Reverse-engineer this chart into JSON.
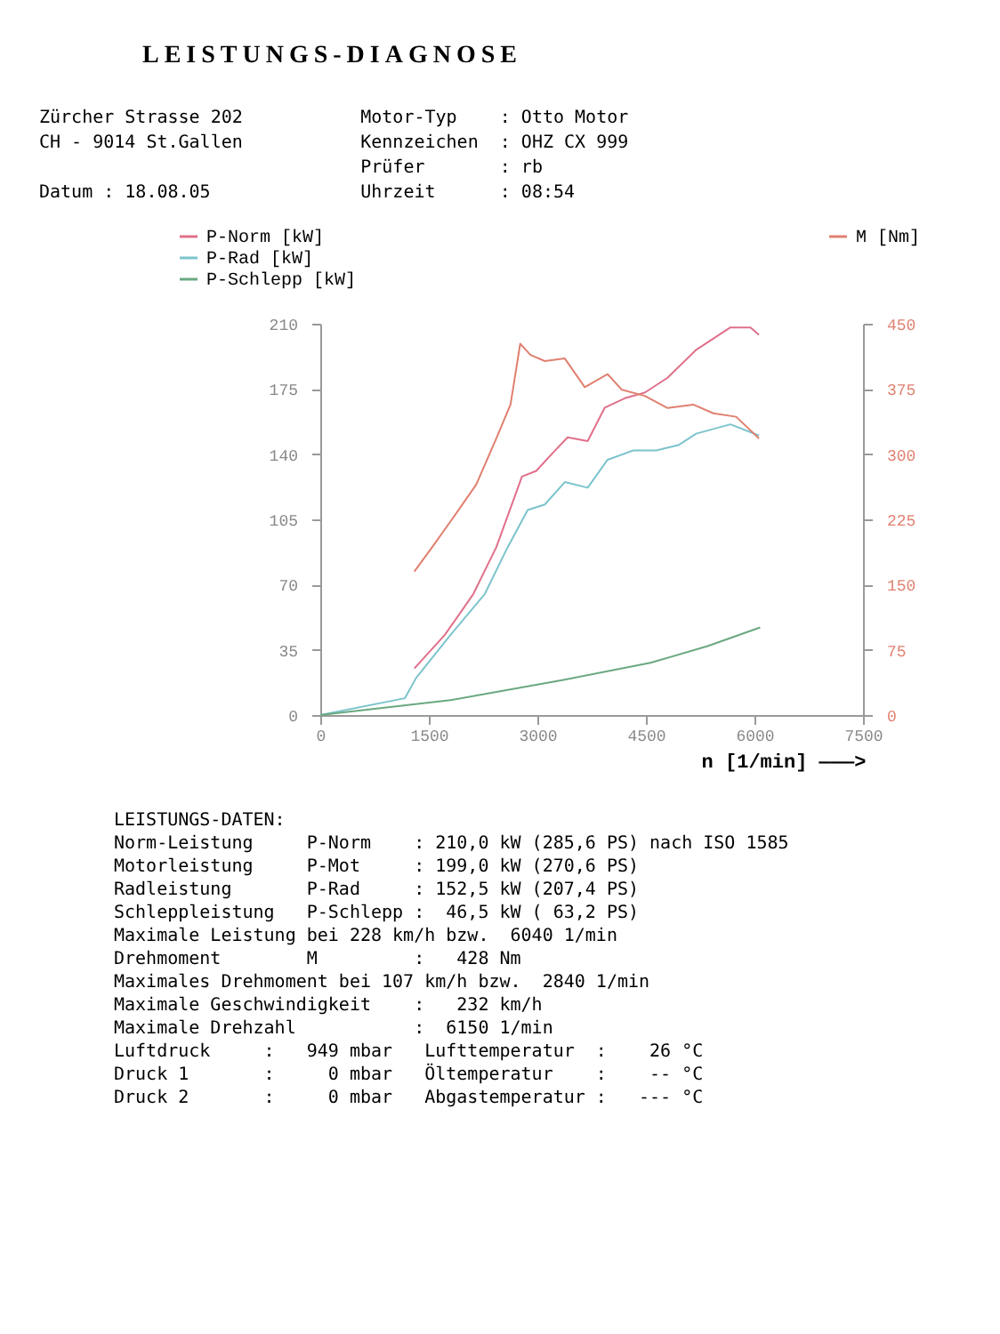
{
  "chart_data": {
    "type": "line",
    "title": "LEISTUNGS-DIAGNOSE",
    "subtitle": [
      "Zürcher Strasse 202           Motor-Typ    : Otto Motor",
      "CH - 9014 St.Gallen           Kennzeichen  : OHZ CX 999",
      "                              Prüfer       : rb",
      "Datum : 18.08.05              Uhrzeit      : 08:54"
    ],
    "xlabel": "n [1/min] ———>",
    "xlim": [
      0,
      7500
    ],
    "xticks": [
      0,
      1500,
      3000,
      4500,
      6000,
      7500
    ],
    "ylim": [
      0,
      210
    ],
    "yticks": [
      0,
      35,
      70,
      105,
      140,
      175,
      210
    ],
    "y2lim": [
      0,
      450
    ],
    "y2ticks": [
      0,
      75,
      150,
      225,
      300,
      375,
      450
    ],
    "legend": "top",
    "series": [
      {
        "name": "P-Norm [kW]",
        "color": "#e0708a",
        "x": [
          1300,
          1721,
          2116,
          2432,
          2629,
          2787,
          2984,
          3221,
          3418,
          3695,
          3932,
          4208,
          4484,
          4800,
          5195,
          5668,
          5945,
          6063
        ],
        "values": [
          25,
          43,
          65,
          90,
          111,
          128,
          131,
          141,
          149,
          147,
          165,
          170,
          173,
          181,
          196,
          208,
          208,
          204
        ]
      },
      {
        "name": "P-Rad [kW]",
        "color": "#7cc4cc",
        "x": [
          0,
          1168,
          1326,
          1800,
          2274,
          2589,
          2866,
          3103,
          3379,
          3695,
          3971,
          4326,
          4642,
          4958,
          5195,
          5668,
          6063
        ],
        "values": [
          0,
          9,
          20,
          43,
          65,
          90,
          110,
          113,
          125,
          122,
          137,
          142,
          142,
          145,
          151,
          156,
          150
        ]
      },
      {
        "name": "P-Schlepp [kW]",
        "color": "#6aa880",
        "x": [
          0,
          1800,
          3379,
          4563,
          5353,
          6079
        ],
        "values": [
          0,
          8,
          19,
          28,
          37,
          47
        ]
      },
      {
        "name": "M [Nm]",
        "color": "#e08070",
        "axis": "y2",
        "x": [
          1300,
          1563,
          1879,
          2155,
          2432,
          2629,
          2763,
          2905,
          3103,
          3379,
          3655,
          3971,
          4168,
          4484,
          4800,
          5155,
          5432,
          5747,
          6063
        ],
        "values": [
          165,
          195,
          232,
          265,
          318,
          357,
          427,
          414,
          407,
          410,
          377,
          392,
          374,
          367,
          353,
          357,
          347,
          343,
          318
        ]
      }
    ],
    "annotations": [
      "LEISTUNGS-DATEN:",
      "Norm-Leistung     P-Norm    : 210,0 kW (285,6 PS) nach ISO 1585",
      "Motorleistung     P-Mot     : 199,0 kW (270,6 PS)",
      "Radleistung       P-Rad     : 152,5 kW (207,4 PS)",
      "Schleppleistung   P-Schlepp :  46,5 kW ( 63,2 PS)",
      "Maximale Leistung bei 228 km/h bzw.  6040 1/min",
      "Drehmoment        M         :   428 Nm",
      "Maximales Drehmoment bei 107 km/h bzw.  2840 1/min",
      "Maximale Geschwindigkeit    :   232 km/h",
      "Maximale Drehzahl           :  6150 1/min",
      "Luftdruck     :   949 mbar   Lufttemperatur  :    26 °C",
      "Druck 1       :     0 mbar   Öltemperatur    :    -- °C",
      "Druck 2       :     0 mbar   Abgastemperatur :   --- °C"
    ]
  }
}
